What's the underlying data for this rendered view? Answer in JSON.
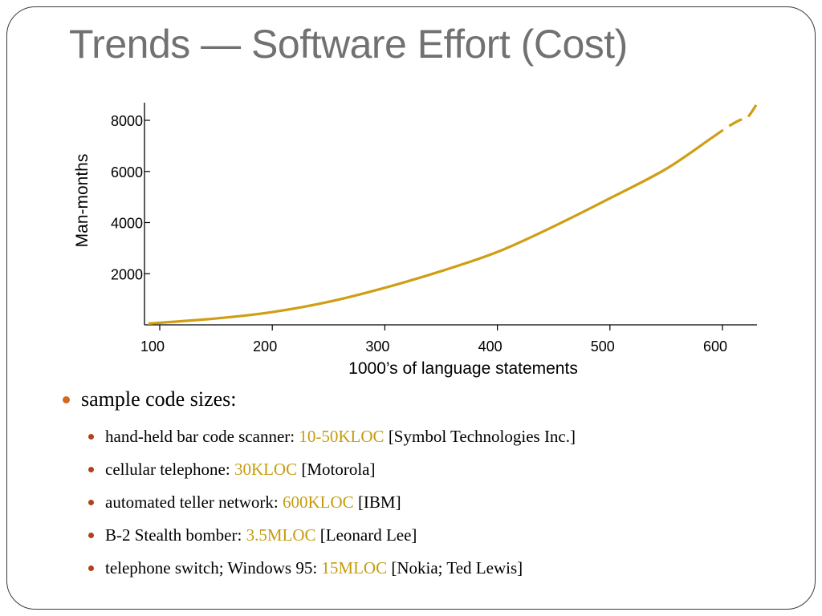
{
  "slide": {
    "title": "Trends — Software Effort (Cost)"
  },
  "colors": {
    "curve": "#cf9e14",
    "highlight": "#c59c0c",
    "title": "#717171",
    "bullet_l1": "#d2691e",
    "bullet_l2": "#b0431e"
  },
  "chart_data": {
    "type": "line",
    "xlabel": "1000’s of language statements",
    "ylabel": "Man-months",
    "x_ticks": [
      100,
      200,
      300,
      400,
      500,
      600
    ],
    "y_ticks": [
      2000,
      4000,
      6000,
      8000
    ],
    "xlim": [
      88,
      632
    ],
    "ylim": [
      0,
      8700
    ],
    "grid": false,
    "series": [
      {
        "style": "solid",
        "x": [
          90,
          150,
          200,
          250,
          300,
          350,
          400,
          450,
          500,
          550,
          590
        ],
        "y": [
          50,
          250,
          500,
          900,
          1450,
          2100,
          2850,
          3850,
          4950,
          6100,
          7300
        ]
      },
      {
        "style": "dashed",
        "x": [
          590,
          605,
          615,
          622,
          630
        ],
        "y": [
          7300,
          7750,
          8000,
          8100,
          8600
        ]
      }
    ]
  },
  "bullets": {
    "main": "sample code sizes:",
    "items": [
      {
        "pre": "hand-held bar code scanner: ",
        "hl": "10-50KLOC",
        "post": " [Symbol Technologies Inc.]"
      },
      {
        "pre": "cellular telephone: ",
        "hl": "30KLOC",
        "post": " [Motorola]"
      },
      {
        "pre": "automated teller network: ",
        "hl": "600KLOC",
        "post": " [IBM]"
      },
      {
        "pre": "B-2 Stealth bomber: ",
        "hl": "3.5MLOC",
        "post": " [Leonard Lee]"
      },
      {
        "pre": "telephone switch; Windows 95: ",
        "hl": "15MLOC",
        "post": " [Nokia; Ted Lewis]"
      }
    ]
  }
}
